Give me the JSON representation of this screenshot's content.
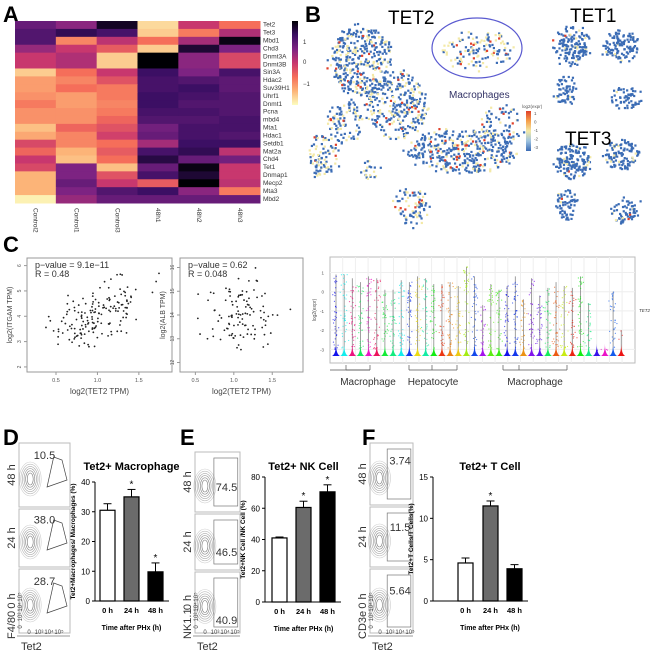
{
  "panel_labels": [
    "A",
    "B",
    "C",
    "D",
    "E",
    "F"
  ],
  "panel_b": {
    "titles": [
      "TET2",
      "TET1",
      "TET3"
    ],
    "annotation": "Macrophages",
    "legend_title": "log2(expr)",
    "legend_ticks": [
      "1",
      "0",
      "-1",
      "-2",
      "-3"
    ],
    "colors": {
      "low": "#3b6cb5",
      "mid": "#f3e9a6",
      "high": "#e0402a"
    }
  },
  "flow": [
    {
      "panel": "D",
      "y_label": "F4/80",
      "x_label": "Tet2",
      "row_labels": [
        "48 h",
        "24 h",
        "0 h"
      ],
      "values": [
        "10.5",
        "38.0",
        "28.7"
      ],
      "x_ticks": [
        "0",
        "10³",
        "10⁴",
        "10⁵"
      ],
      "y_ticks": [
        "0",
        "10³",
        "10⁴",
        "10⁵"
      ]
    },
    {
      "panel": "E",
      "y_label": "NK1.1",
      "x_label": "Tet2",
      "row_labels": [
        "48 h",
        "24 h",
        "0 h"
      ],
      "values": [
        "74.5",
        "46.5",
        "40.9"
      ],
      "x_ticks": [
        "0",
        "10³",
        "10⁴",
        "10⁵"
      ],
      "y_ticks": [
        "0",
        "10³",
        "10⁴",
        "10⁵"
      ]
    },
    {
      "panel": "F",
      "y_label": "CD3e",
      "x_label": "Tet2",
      "row_labels": [
        "48 h",
        "24 h",
        "0 h"
      ],
      "values": [
        "3.74",
        "11.5",
        "5.64"
      ],
      "x_ticks": [
        "0",
        "10³",
        "10⁴",
        "10⁵"
      ],
      "y_ticks": [
        "0",
        "10³",
        "10⁴",
        "10⁵"
      ]
    }
  ],
  "chart_data": [
    {
      "type": "heatmap",
      "columns": [
        "Control2",
        "Control1",
        "Control3",
        "48h1",
        "48h2",
        "48h3"
      ],
      "rows": [
        "Tet2",
        "Tet3",
        "Mbd1",
        "Chd3",
        "Dnmt3A",
        "Dnmt3B",
        "Sin3A",
        "Hdac2",
        "Suv39H1",
        "Uhrf1",
        "Dnmt1",
        "Pcna",
        "mbd4",
        "Mta1",
        "Hdac1",
        "Setdb1",
        "Mat2a",
        "Chd4",
        "Tet1",
        "Dnmap1",
        "Mecp2",
        "Mta3",
        "Mbd2"
      ],
      "values": [
        [
          0.8,
          0.5,
          1.6,
          -1.5,
          0.0,
          -0.6
        ],
        [
          1.0,
          1.3,
          1.1,
          -1.4,
          -0.7,
          0.2
        ],
        [
          1.0,
          -0.8,
          0.1,
          -0.6,
          0.3,
          1.7
        ],
        [
          0.4,
          0.0,
          -0.4,
          -1.4,
          1.5,
          0.6
        ],
        [
          0.0,
          0.2,
          -1.4,
          1.8,
          0.5,
          -0.2
        ],
        [
          0.0,
          0.2,
          -1.4,
          1.8,
          0.5,
          -0.2
        ],
        [
          -1.4,
          -0.6,
          0.0,
          1.2,
          0.6,
          1.1
        ],
        [
          -1.0,
          -0.8,
          -0.3,
          1.1,
          1.0,
          0.9
        ],
        [
          -1.0,
          -0.6,
          -0.7,
          1.1,
          1.2,
          0.9
        ],
        [
          -0.9,
          -1.0,
          -0.7,
          1.2,
          1.1,
          1.0
        ],
        [
          -0.7,
          -1.0,
          -0.8,
          1.2,
          1.0,
          1.0
        ],
        [
          -0.9,
          -0.9,
          -0.7,
          1.1,
          1.1,
          1.0
        ],
        [
          -0.9,
          -0.9,
          -0.5,
          1.0,
          1.0,
          1.1
        ],
        [
          -1.3,
          -0.5,
          -0.3,
          0.7,
          1.1,
          1.1
        ],
        [
          -1.1,
          -0.8,
          -0.1,
          0.8,
          1.1,
          1.0
        ],
        [
          -0.2,
          -0.8,
          -0.6,
          0.3,
          1.2,
          1.2
        ],
        [
          -0.5,
          -1.2,
          -0.4,
          1.1,
          1.3,
          0.1
        ],
        [
          0.0,
          -1.3,
          -0.6,
          1.4,
          0.8,
          0.7
        ],
        [
          -0.2,
          0.6,
          -1.3,
          0.8,
          1.7,
          0.0
        ],
        [
          -1.2,
          0.6,
          -0.3,
          1.1,
          1.5,
          0.0
        ],
        [
          -1.2,
          0.8,
          0.0,
          -0.4,
          1.9,
          0.1
        ],
        [
          -1.2,
          0.6,
          1.0,
          1.2,
          0.5,
          -0.7
        ],
        [
          -1.7,
          0.4,
          0.8,
          0.8,
          0.8,
          0.8
        ]
      ],
      "colorbar_ticks": [
        "1",
        "0",
        "−1"
      ],
      "range": [
        -1.8,
        1.8
      ]
    },
    {
      "type": "scatter",
      "xlabel": "log2(TET2 TPM)",
      "ylabel": "log2(ITGAM TPM)",
      "stats": [
        "p−value = 9.1e−11",
        "R = 0.48"
      ],
      "x_ticks": [
        "0.5",
        "1.0",
        "1.5"
      ],
      "y_ticks": [
        "2",
        "3",
        "4",
        "5",
        "6"
      ],
      "xlim": [
        0.15,
        1.9
      ],
      "ylim": [
        1.8,
        6.3
      ],
      "n": 160,
      "r": 0.48
    },
    {
      "type": "scatter",
      "xlabel": "log2(TET2 TPM)",
      "ylabel": "log2(ALB TPM)",
      "stats": [
        "p−value = 0.62",
        "R = 0.048"
      ],
      "x_ticks": [
        "0.5",
        "1.0",
        "1.5"
      ],
      "y_ticks": [
        "12",
        "13",
        "14",
        "15",
        "16"
      ],
      "xlim": [
        0.3,
        1.9
      ],
      "ylim": [
        11.6,
        16.4
      ],
      "n": 110,
      "r": 0.048
    },
    {
      "type": "violin",
      "ylabel": "log2(expr)",
      "gene": "TET2",
      "y_ticks": [
        "1",
        "0",
        "-1",
        "-2",
        "-3"
      ],
      "ylim": [
        -3.4,
        1.6
      ],
      "group_labels": [
        "Macrophage",
        "Hepatocyte",
        "Macrophage"
      ],
      "n_clusters": 36
    },
    {
      "type": "bar",
      "title": "Tet2+ Macrophage",
      "ylabel": "Tet2+Macrophages/ Macrophages (%)",
      "xlabel": "Time after PHx (h)",
      "categories": [
        "0 h",
        "24 h",
        "48 h"
      ],
      "values": [
        30.5,
        35.0,
        9.8
      ],
      "errors": [
        2.2,
        2.5,
        3.0
      ],
      "significant": [
        false,
        true,
        true
      ],
      "ylim": [
        0,
        40
      ],
      "y_ticks": [
        0,
        10,
        20,
        30,
        40
      ],
      "colors": [
        "#ffffff",
        "#6b6b6b",
        "#000000"
      ],
      "star": "*"
    },
    {
      "type": "bar",
      "title": "Tet2+ NK Cell",
      "ylabel": "Tet2+NK Cell /NK Cell (%)",
      "xlabel": "Time after PHx (h)",
      "categories": [
        "0 h",
        "24 h",
        "48 h"
      ],
      "values": [
        41.0,
        60.5,
        70.5
      ],
      "errors": [
        0.6,
        4.0,
        4.5
      ],
      "significant": [
        false,
        true,
        true
      ],
      "ylim": [
        0,
        80
      ],
      "y_ticks": [
        0,
        20,
        40,
        60,
        80
      ],
      "colors": [
        "#ffffff",
        "#6b6b6b",
        "#000000"
      ],
      "star": "*"
    },
    {
      "type": "bar",
      "title": "Tet2+ T Cell",
      "ylabel": "Tet2+T Cells/T Cells(%)",
      "xlabel": "Time after PHx (h)",
      "categories": [
        "0 h",
        "24 h",
        "48 h"
      ],
      "values": [
        4.6,
        11.5,
        3.9
      ],
      "errors": [
        0.6,
        0.6,
        0.5
      ],
      "significant": [
        false,
        true,
        false
      ],
      "ylim": [
        0,
        15
      ],
      "y_ticks": [
        0,
        5,
        10,
        15
      ],
      "colors": [
        "#ffffff",
        "#6b6b6b",
        "#000000"
      ],
      "star": "*"
    }
  ]
}
